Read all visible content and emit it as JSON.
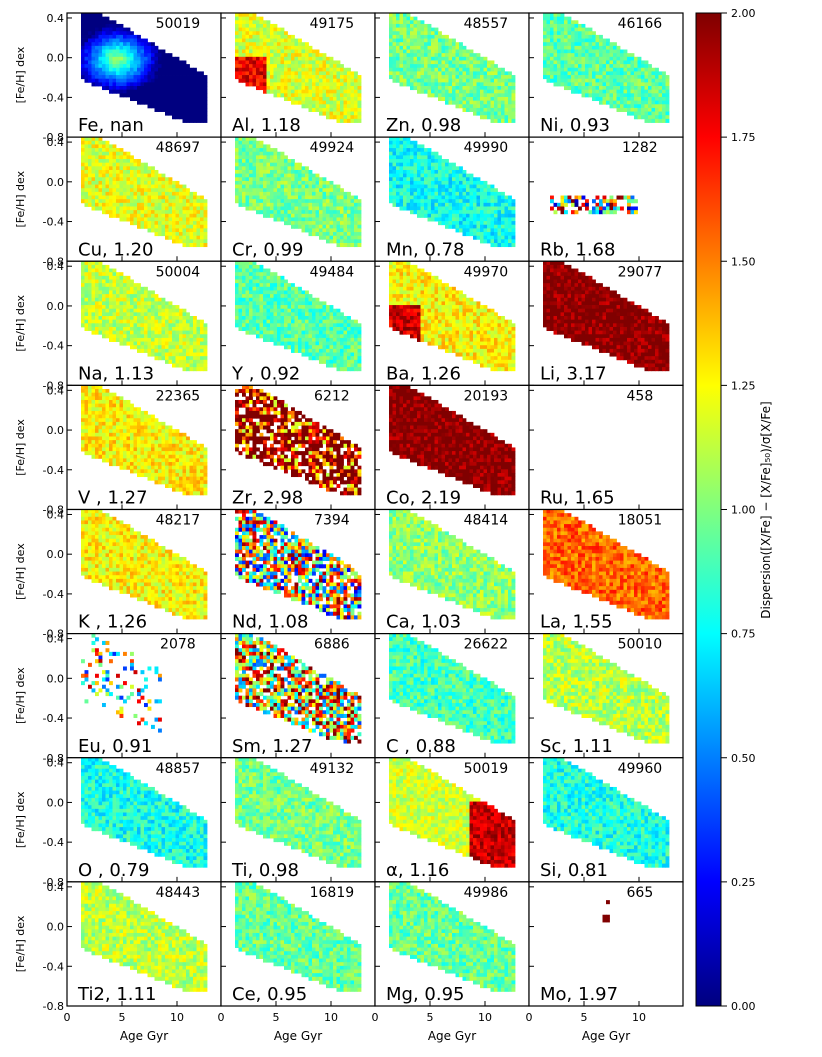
{
  "chart_data": {
    "type": "heatmap",
    "grid": {
      "rows": 8,
      "cols": 4
    },
    "ylabel": "[Fe/H] dex",
    "xlabel": "Age Gyr",
    "xlim": [
      0,
      14
    ],
    "ylim": [
      -0.8,
      0.45
    ],
    "xticks": [
      "0",
      "5",
      "10"
    ],
    "yticks": [
      "0.4",
      "0.0",
      "-0.4",
      "-0.8"
    ],
    "xtick_values": [
      0,
      5,
      10
    ],
    "ytick_values": [
      0.4,
      0.0,
      -0.4,
      -0.8
    ],
    "colorbar": {
      "label": "Dispersion([X/Fe] − [X/Fe]₅₀)/σ[X/Fe]",
      "range": [
        0,
        2
      ],
      "ticks": [
        "0.00",
        "0.25",
        "0.50",
        "0.75",
        "1.00",
        "1.25",
        "1.50",
        "1.75",
        "2.00"
      ],
      "colormap": [
        "#00007f",
        "#0000ff",
        "#007fff",
        "#00ffff",
        "#7fff7f",
        "#ffff00",
        "#ff7f00",
        "#ff0000",
        "#7f0000"
      ]
    },
    "panels": [
      {
        "label": "Fe,  nan",
        "count": "50019",
        "value": null,
        "style": "fe"
      },
      {
        "label": "Al, 1.18",
        "count": "49175",
        "value": 1.18,
        "style": "young"
      },
      {
        "label": "Zn, 0.98",
        "count": "48557",
        "value": 0.98,
        "style": "full"
      },
      {
        "label": "Ni, 0.93",
        "count": "46166",
        "value": 0.93,
        "style": "full"
      },
      {
        "label": "Cu, 1.20",
        "count": "48697",
        "value": 1.2,
        "style": "full"
      },
      {
        "label": "Cr, 0.99",
        "count": "49924",
        "value": 0.99,
        "style": "full"
      },
      {
        "label": "Mn, 0.78",
        "count": "49990",
        "value": 0.78,
        "style": "full"
      },
      {
        "label": "Rb, 1.68",
        "count": "1282",
        "value": 1.68,
        "style": "band"
      },
      {
        "label": "Na, 1.13",
        "count": "50004",
        "value": 1.13,
        "style": "full"
      },
      {
        "label": "Y , 0.92",
        "count": "49484",
        "value": 0.92,
        "style": "full"
      },
      {
        "label": "Ba, 1.26",
        "count": "49970",
        "value": 1.26,
        "style": "young"
      },
      {
        "label": "Li, 3.17",
        "count": "29077",
        "value": 3.17,
        "style": "full"
      },
      {
        "label": "V , 1.27",
        "count": "22365",
        "value": 1.27,
        "style": "full"
      },
      {
        "label": "Zr, 2.98",
        "count": "6212",
        "value": 2.98,
        "style": "sparse"
      },
      {
        "label": "Co, 2.19",
        "count": "20193",
        "value": 2.19,
        "style": "full"
      },
      {
        "label": "Ru, 1.65",
        "count": "458",
        "value": 1.65,
        "style": "empty"
      },
      {
        "label": "K , 1.26",
        "count": "48217",
        "value": 1.26,
        "style": "full"
      },
      {
        "label": "Nd, 1.08",
        "count": "7394",
        "value": 1.08,
        "style": "sparse"
      },
      {
        "label": "Ca, 1.03",
        "count": "48414",
        "value": 1.03,
        "style": "full"
      },
      {
        "label": "La, 1.55",
        "count": "18051",
        "value": 1.55,
        "style": "full"
      },
      {
        "label": "Eu, 0.91",
        "count": "2078",
        "value": 0.91,
        "style": "scatter"
      },
      {
        "label": "Sm, 1.27",
        "count": "6886",
        "value": 1.27,
        "style": "sparse"
      },
      {
        "label": "C , 0.88",
        "count": "26622",
        "value": 0.88,
        "style": "full"
      },
      {
        "label": "Sc, 1.11",
        "count": "50010",
        "value": 1.11,
        "style": "full"
      },
      {
        "label": "O , 0.79",
        "count": "48857",
        "value": 0.79,
        "style": "full"
      },
      {
        "label": "Ti, 0.98",
        "count": "49132",
        "value": 0.98,
        "style": "full"
      },
      {
        "label": "α, 1.16",
        "count": "50019",
        "value": 1.16,
        "style": "old"
      },
      {
        "label": "Si, 0.81",
        "count": "49960",
        "value": 0.81,
        "style": "full"
      },
      {
        "label": "Ti2, 1.11",
        "count": "48443",
        "value": 1.11,
        "style": "full"
      },
      {
        "label": "Ce, 0.95",
        "count": "16819",
        "value": 0.95,
        "style": "full"
      },
      {
        "label": "Mg, 0.95",
        "count": "49986",
        "value": 0.95,
        "style": "full"
      },
      {
        "label": "Mo, 1.97",
        "count": "665",
        "value": 1.97,
        "style": "few"
      }
    ]
  }
}
